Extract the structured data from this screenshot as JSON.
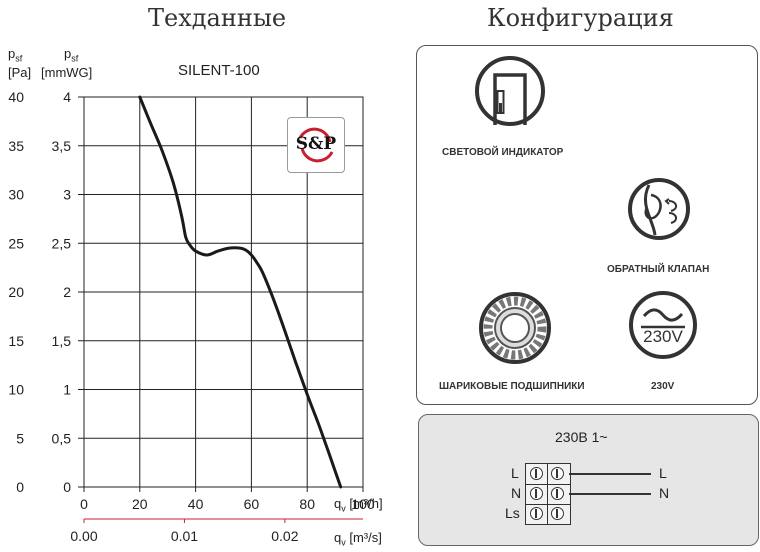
{
  "headings": {
    "tech": "Техданные",
    "config": "Конфигурация"
  },
  "chart_data": {
    "type": "line",
    "title": "SILENT-100",
    "ylabel_pa": {
      "main": "p",
      "sub": "sf",
      "unit": "[Pa]"
    },
    "ylabel_mmwg": {
      "main": "p",
      "sub": "sf",
      "unit": "[mmWG]"
    },
    "xlabel_m3h": {
      "main": "q",
      "sub": "v",
      "unit": "[m³/h]"
    },
    "xlabel_m3s": {
      "main": "q",
      "sub": "v",
      "unit": "[m³/s]"
    },
    "xlim": [
      0,
      100
    ],
    "ylim_mmwg": [
      0,
      4
    ],
    "x_ticks": [
      "0",
      "20",
      "40",
      "60",
      "80",
      "100"
    ],
    "y_ticks_mmwg": [
      "0",
      "0,5",
      "1",
      "1,5",
      "2",
      "2,5",
      "3",
      "3,5",
      "4"
    ],
    "y_ticks_pa": [
      "0",
      "5",
      "10",
      "15",
      "20",
      "25",
      "30",
      "35",
      "40"
    ],
    "x2_ticks": [
      {
        "label": "0.00",
        "m3h": 0
      },
      {
        "label": "0.01",
        "m3h": 36
      },
      {
        "label": "0.02",
        "m3h": 72
      }
    ],
    "grid": true,
    "legend": "none",
    "series": [
      {
        "color": "#1a1a1a",
        "x": [
          20,
          24,
          28,
          32,
          35,
          36.5,
          38,
          40,
          44,
          48,
          52,
          56,
          58,
          60,
          62,
          64,
          68,
          72,
          76,
          80,
          84,
          88,
          92
        ],
        "y": [
          4.0,
          3.72,
          3.45,
          3.12,
          2.78,
          2.56,
          2.48,
          2.42,
          2.38,
          2.42,
          2.45,
          2.45,
          2.43,
          2.38,
          2.3,
          2.2,
          1.92,
          1.6,
          1.27,
          0.95,
          0.65,
          0.33,
          0.0
        ]
      }
    ]
  },
  "logo_text": "S&P",
  "features": {
    "indicator": "СВЕТОВОЙ ИНДИКАТОР",
    "valve": "ОБРАТНЫЙ КЛАПАН",
    "bearings": "ШАРИКОВЫЕ ПОДШИПНИКИ",
    "voltage": "230V",
    "voltage_icon": "230V"
  },
  "wiring": {
    "title": "230В 1~",
    "rows": [
      {
        "left": "L",
        "right": "L",
        "line": true
      },
      {
        "left": "N",
        "right": "N",
        "line": true
      },
      {
        "left": "Ls",
        "right": "",
        "line": false
      }
    ]
  },
  "colors": {
    "curve": "#1a1a1a",
    "grid": "#222222",
    "logo_red": "#c8202f",
    "panel_gray": "#e6e6e6"
  }
}
